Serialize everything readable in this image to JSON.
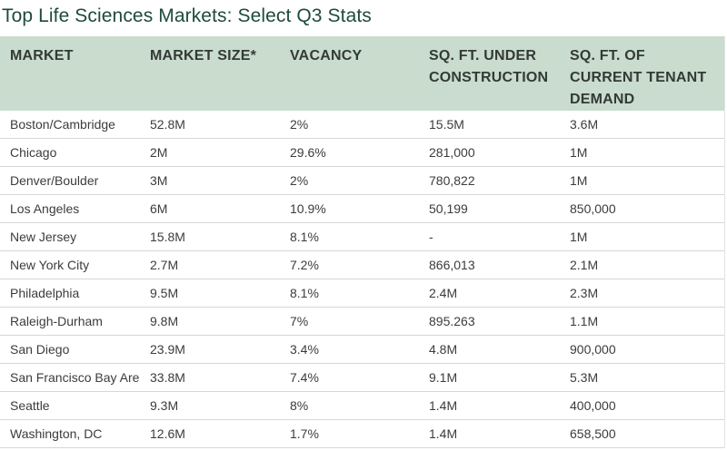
{
  "title": "Top Life Sciences Markets: Select Q3 Stats",
  "columns": [
    "MARKET",
    "MARKET SIZE*",
    "VACANCY",
    "SQ. FT. UNDER CONSTRUCTION",
    "SQ. FT. OF CURRENT TENANT DEMAND"
  ],
  "rows": [
    [
      "Boston/Cambridge",
      "52.8M",
      "2%",
      "15.5M",
      "3.6M"
    ],
    [
      "Chicago",
      "2M",
      "29.6%",
      "281,000",
      "1M"
    ],
    [
      "Denver/Boulder",
      "3M",
      "2%",
      "780,822",
      "1M"
    ],
    [
      "Los Angeles",
      "6M",
      "10.9%",
      "50,199",
      "850,000"
    ],
    [
      "New Jersey",
      "15.8M",
      "8.1%",
      "-",
      "1M"
    ],
    [
      "New York City",
      "2.7M",
      "7.2%",
      "866,013",
      "2.1M"
    ],
    [
      "Philadelphia",
      "9.5M",
      "8.1%",
      "2.4M",
      "2.3M"
    ],
    [
      "Raleigh-Durham",
      "9.8M",
      "7%",
      "895.263",
      "1.1M"
    ],
    [
      "San Diego",
      "23.9M",
      "3.4%",
      "4.8M",
      "900,000"
    ],
    [
      "San Francisco Bay Area",
      "33.8M",
      "7.4%",
      "9.1M",
      "5.3M"
    ],
    [
      "Seattle",
      "9.3M",
      "8%",
      "1.4M",
      "400,000"
    ],
    [
      "Washington, DC",
      "12.6M",
      "1.7%",
      "1.4M",
      "658,500"
    ]
  ],
  "colors": {
    "title": "#1f4a3c",
    "header_bg": "#c9dccd",
    "row_border": "#d4d8d6"
  },
  "chart_data": {
    "type": "table",
    "title": "Top Life Sciences Markets: Select Q3 Stats",
    "columns": [
      "MARKET",
      "MARKET SIZE*",
      "VACANCY",
      "SQ. FT. UNDER CONSTRUCTION",
      "SQ. FT. OF CURRENT TENANT DEMAND"
    ],
    "rows": [
      [
        "Boston/Cambridge",
        "52.8M",
        "2%",
        "15.5M",
        "3.6M"
      ],
      [
        "Chicago",
        "2M",
        "29.6%",
        "281,000",
        "1M"
      ],
      [
        "Denver/Boulder",
        "3M",
        "2%",
        "780,822",
        "1M"
      ],
      [
        "Los Angeles",
        "6M",
        "10.9%",
        "50,199",
        "850,000"
      ],
      [
        "New Jersey",
        "15.8M",
        "8.1%",
        "-",
        "1M"
      ],
      [
        "New York City",
        "2.7M",
        "7.2%",
        "866,013",
        "2.1M"
      ],
      [
        "Philadelphia",
        "9.5M",
        "8.1%",
        "2.4M",
        "2.3M"
      ],
      [
        "Raleigh-Durham",
        "9.8M",
        "7%",
        "895.263",
        "1.1M"
      ],
      [
        "San Diego",
        "23.9M",
        "3.4%",
        "4.8M",
        "900,000"
      ],
      [
        "San Francisco Bay Area",
        "33.8M",
        "7.4%",
        "9.1M",
        "5.3M"
      ],
      [
        "Seattle",
        "9.3M",
        "8%",
        "1.4M",
        "400,000"
      ],
      [
        "Washington, DC",
        "12.6M",
        "1.7%",
        "1.4M",
        "658,500"
      ]
    ]
  }
}
